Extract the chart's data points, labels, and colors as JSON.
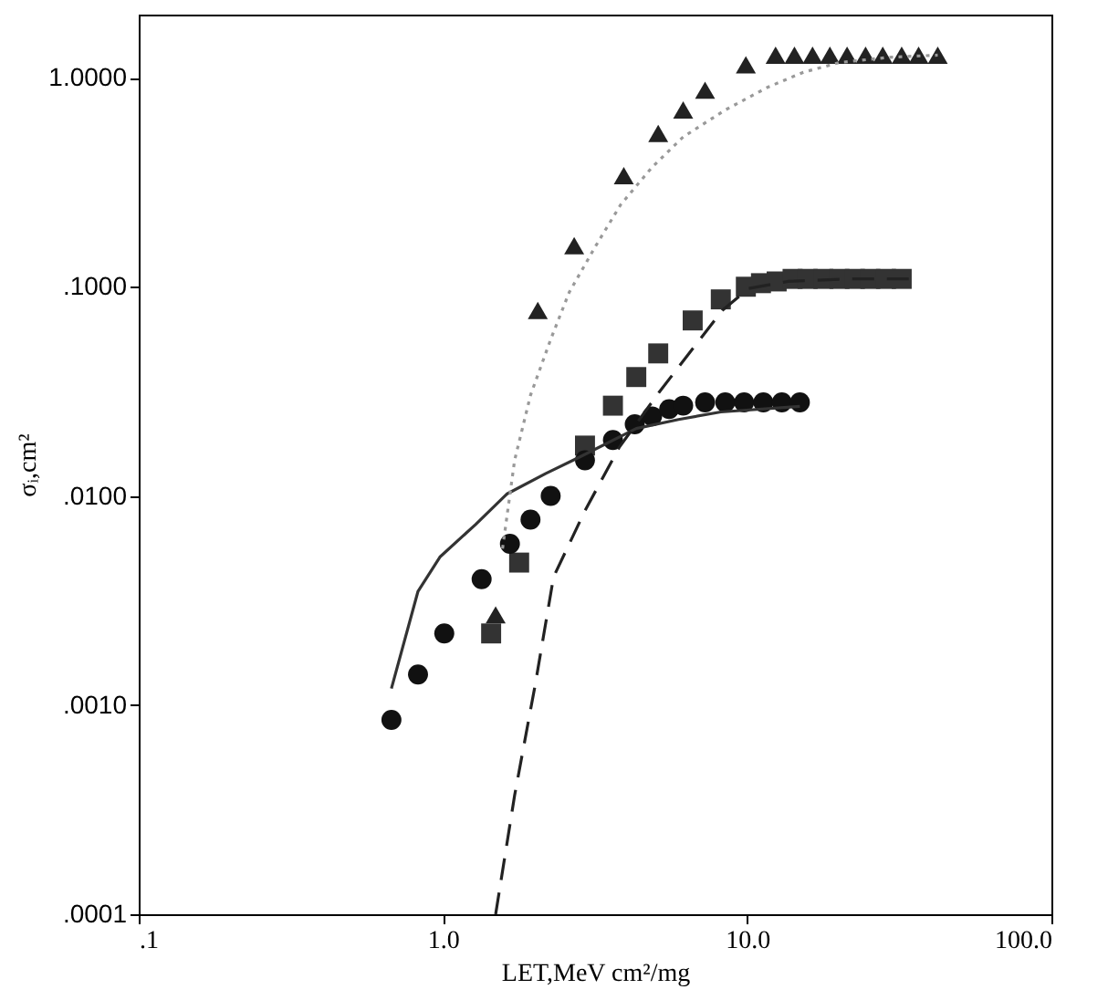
{
  "chart_data": {
    "type": "scatter",
    "xlabel": "LET,MeV cm²/mg",
    "ylabel": "σᵢ,cm²",
    "log": "xy",
    "grid": false,
    "xlim": [
      0.1,
      100
    ],
    "ylim": [
      0.0001,
      2
    ],
    "xticks": [
      {
        "value": 0.1,
        "label": ".1"
      },
      {
        "value": 1,
        "label": "1.0"
      },
      {
        "value": 10,
        "label": "10.0"
      },
      {
        "value": 100,
        "label": "100.0"
      }
    ],
    "yticks": [
      {
        "value": 0.0001,
        "label": ".0001"
      },
      {
        "value": 0.001,
        "label": ".0010"
      },
      {
        "value": 0.01,
        "label": ".0100"
      },
      {
        "value": 0.1,
        "label": ".1000"
      },
      {
        "value": 1,
        "label": "1.0000"
      }
    ],
    "series": [
      {
        "type": "scatter",
        "marker": "triangle",
        "color": "#222222",
        "x": [
          1.49,
          2.05,
          2.7,
          3.93,
          5.1,
          6.16,
          7.27,
          9.9,
          12.4,
          14.3,
          16.4,
          18.7,
          21.3,
          24.5,
          27.9,
          32.2,
          36.6,
          42.3
        ],
        "values": [
          0.0027,
          0.077,
          0.157,
          0.34,
          0.54,
          0.7,
          0.87,
          1.15,
          1.28,
          1.28,
          1.28,
          1.28,
          1.28,
          1.28,
          1.28,
          1.28,
          1.28,
          1.28
        ]
      },
      {
        "type": "scatter",
        "marker": "square",
        "color": "#333333",
        "x": [
          1.44,
          1.78,
          2.93,
          3.62,
          4.32,
          5.1,
          6.62,
          8.19,
          9.9,
          11.1,
          12.5,
          14.1,
          15.8,
          17.8,
          20.1,
          22.6,
          25.4,
          28.6,
          32.2
        ],
        "values": [
          0.0022,
          0.0048,
          0.0174,
          0.027,
          0.037,
          0.048,
          0.069,
          0.087,
          0.1,
          0.104,
          0.106,
          0.109,
          0.109,
          0.109,
          0.109,
          0.109,
          0.109,
          0.109,
          0.109
        ]
      },
      {
        "type": "scatter",
        "marker": "circle",
        "color": "#111111",
        "x": [
          0.677,
          0.828,
          1.01,
          1.34,
          1.66,
          1.94,
          2.26,
          2.93,
          3.62,
          4.27,
          4.87,
          5.54,
          6.16,
          7.27,
          8.47,
          9.77,
          11.3,
          13.0,
          14.9
        ],
        "values": [
          0.00085,
          0.0014,
          0.0022,
          0.004,
          0.0059,
          0.0077,
          0.01,
          0.0148,
          0.0185,
          0.022,
          0.024,
          0.026,
          0.027,
          0.028,
          0.028,
          0.028,
          0.028,
          0.028,
          0.028
        ]
      },
      {
        "type": "line",
        "line_style": "solid",
        "color": "#333333",
        "x": [
          0.677,
          0.828,
          0.977,
          1.28,
          1.62,
          2.18,
          2.83,
          4.32,
          5.95,
          8.19,
          14.9
        ],
        "values": [
          0.0012,
          0.0035,
          0.0051,
          0.0073,
          0.0102,
          0.0128,
          0.0154,
          0.021,
          0.0232,
          0.0252,
          0.0268
        ]
      },
      {
        "type": "line",
        "line_style": "dashed",
        "color": "#222222",
        "x": [
          1.49,
          1.72,
          2.01,
          2.31,
          2.93,
          3.8,
          5.16,
          8.28,
          10.1,
          13.6,
          21.8,
          35
        ],
        "values": [
          0.0001,
          0.00037,
          0.00125,
          0.0041,
          0.0085,
          0.0171,
          0.0316,
          0.077,
          0.098,
          0.106,
          0.109,
          0.109
        ]
      },
      {
        "type": "line",
        "line_style": "dotted",
        "color": "#999999",
        "x": [
          1.57,
          1.72,
          1.94,
          2.26,
          2.6,
          3.18,
          3.84,
          4.87,
          6.16,
          8.47,
          11.7,
          15.3,
          20.1,
          29.3,
          42.3
        ],
        "values": [
          0.0056,
          0.0148,
          0.0303,
          0.056,
          0.094,
          0.157,
          0.247,
          0.373,
          0.52,
          0.7,
          0.9,
          1.06,
          1.18,
          1.25,
          1.28
        ]
      }
    ]
  }
}
